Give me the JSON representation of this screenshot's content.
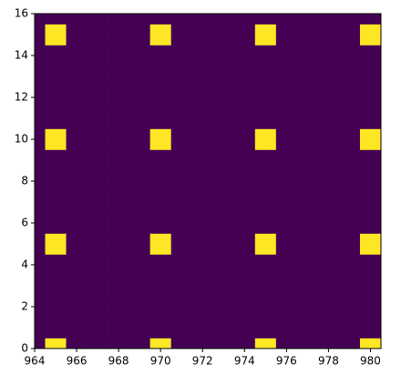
{
  "chart_data": {
    "type": "heatmap",
    "x": [
      964,
      965,
      966,
      967,
      968,
      969,
      970,
      971,
      972,
      973,
      974,
      975,
      976,
      977,
      978,
      979,
      980
    ],
    "y": [
      0,
      1,
      2,
      3,
      4,
      5,
      6,
      7,
      8,
      9,
      10,
      11,
      12,
      13,
      14,
      15,
      16
    ],
    "values": [
      [
        0,
        1,
        0,
        0,
        0,
        0,
        1,
        0,
        0,
        0,
        0,
        1,
        0,
        0,
        0,
        0,
        1
      ],
      [
        0,
        0,
        0,
        0,
        0,
        0,
        0,
        0,
        0,
        0,
        0,
        0,
        0,
        0,
        0,
        0,
        0
      ],
      [
        0,
        0,
        0,
        0,
        0,
        0,
        0,
        0,
        0,
        0,
        0,
        0,
        0,
        0,
        0,
        0,
        0
      ],
      [
        0,
        0,
        0,
        0,
        0,
        0,
        0,
        0,
        0,
        0,
        0,
        0,
        0,
        0,
        0,
        0,
        0
      ],
      [
        0,
        0,
        0,
        0,
        0,
        0,
        0,
        0,
        0,
        0,
        0,
        0,
        0,
        0,
        0,
        0,
        0
      ],
      [
        0,
        1,
        0,
        0,
        0,
        0,
        1,
        0,
        0,
        0,
        0,
        1,
        0,
        0,
        0,
        0,
        1
      ],
      [
        0,
        0,
        0,
        0,
        0,
        0,
        0,
        0,
        0,
        0,
        0,
        0,
        0,
        0,
        0,
        0,
        0
      ],
      [
        0,
        0,
        0,
        0,
        0,
        0,
        0,
        0,
        0,
        0,
        0,
        0,
        0,
        0,
        0,
        0,
        0
      ],
      [
        0,
        0,
        0,
        0,
        0,
        0,
        0,
        0,
        0,
        0,
        0,
        0,
        0,
        0,
        0,
        0,
        0
      ],
      [
        0,
        0,
        0,
        0,
        0,
        0,
        0,
        0,
        0,
        0,
        0,
        0,
        0,
        0,
        0,
        0,
        0
      ],
      [
        0,
        1,
        0,
        0,
        0,
        0,
        1,
        0,
        0,
        0,
        0,
        1,
        0,
        0,
        0,
        0,
        1
      ],
      [
        0,
        0,
        0,
        0,
        0,
        0,
        0,
        0,
        0,
        0,
        0,
        0,
        0,
        0,
        0,
        0,
        0
      ],
      [
        0,
        0,
        0,
        0,
        0,
        0,
        0,
        0,
        0,
        0,
        0,
        0,
        0,
        0,
        0,
        0,
        0
      ],
      [
        0,
        0,
        0,
        0,
        0,
        0,
        0,
        0,
        0,
        0,
        0,
        0,
        0,
        0,
        0,
        0,
        0
      ],
      [
        0,
        0,
        0,
        0,
        0,
        0,
        0,
        0,
        0,
        0,
        0,
        0,
        0,
        0,
        0,
        0,
        0
      ],
      [
        0,
        1,
        0,
        0,
        0,
        0,
        1,
        0,
        0,
        0,
        0,
        1,
        0,
        0,
        0,
        0,
        1
      ],
      [
        0,
        0,
        0,
        0,
        0,
        0,
        0,
        0,
        0,
        0,
        0,
        0,
        0,
        0,
        0,
        0,
        0
      ]
    ],
    "colormap": [
      "#440154",
      "#fde725"
    ],
    "xlim": [
      964,
      980.5
    ],
    "ylim": [
      0,
      16
    ],
    "xticks": [
      964,
      966,
      968,
      970,
      972,
      974,
      976,
      978,
      980
    ],
    "yticks": [
      0,
      2,
      4,
      6,
      8,
      10,
      12,
      14,
      16
    ]
  }
}
